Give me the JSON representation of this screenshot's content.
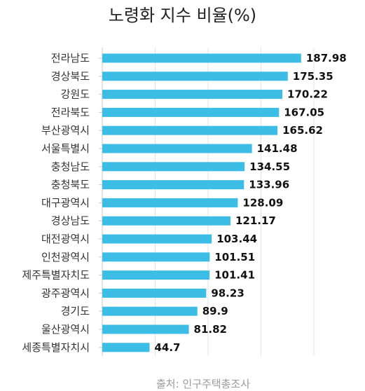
{
  "chart_data": {
    "type": "bar",
    "orientation": "horizontal",
    "title": "노령화 지수 비율(%)",
    "categories": [
      "전라남도",
      "경상북도",
      "강원도",
      "전라북도",
      "부산광역시",
      "서울특별시",
      "충청남도",
      "충청북도",
      "대구광역시",
      "경상남도",
      "대전광역시",
      "인천광역시",
      "제주특별자치도",
      "광주광역시",
      "경기도",
      "울산광역시",
      "세종특별자치시"
    ],
    "values": [
      187.98,
      175.35,
      170.22,
      167.05,
      165.62,
      141.48,
      134.55,
      133.96,
      128.09,
      121.17,
      103.44,
      101.51,
      101.41,
      98.23,
      89.9,
      81.82,
      44.7
    ],
    "value_labels": [
      "187.98",
      "175.35",
      "170.22",
      "167.05",
      "165.62",
      "141.48",
      "134.55",
      "133.96",
      "128.09",
      "121.17",
      "103.44",
      "101.51",
      "101.41",
      "98.23",
      "89.9",
      "81.82",
      "44.7"
    ],
    "xlim": [
      0,
      250
    ],
    "grid": true,
    "bar_color": "#3bbde6",
    "source": "출처: 인구주택총조사"
  }
}
